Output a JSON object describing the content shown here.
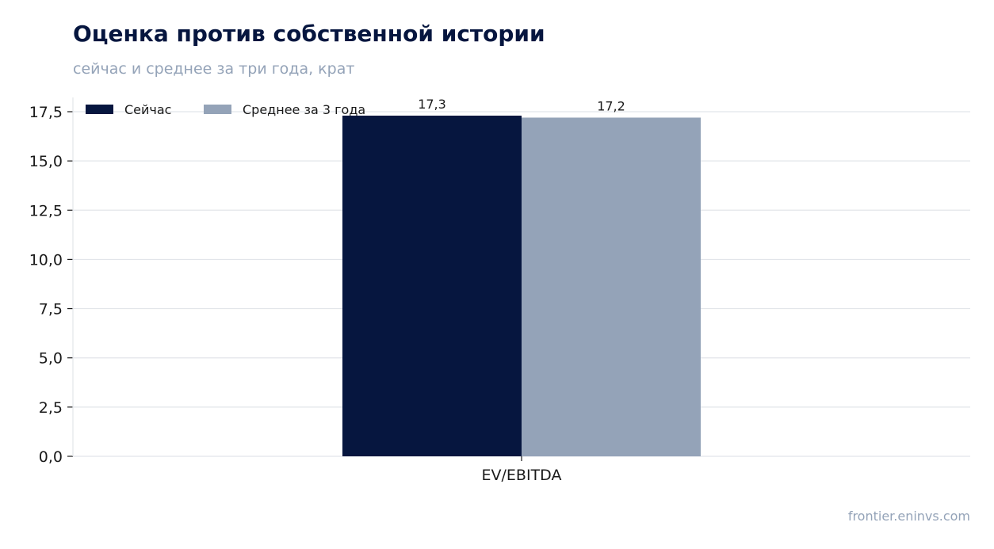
{
  "header": {
    "title": "Оценка против собственной истории",
    "subtitle": "сейчас и среднее за три года, крат"
  },
  "footer": {
    "source": "frontier.eninvs.com"
  },
  "colors": {
    "now": "#06163f",
    "avg": "#94a3b8",
    "grid": "#e2e5ea",
    "axis": "#1a1a1a"
  },
  "chart_data": {
    "type": "bar",
    "title": "Оценка против собственной истории",
    "subtitle": "сейчас и среднее за три года, крат",
    "categories": [
      "EV/EBITDA"
    ],
    "series": [
      {
        "name": "Сейчас",
        "values": [
          17.3
        ],
        "value_labels": [
          "17,3"
        ],
        "color": "#06163f"
      },
      {
        "name": "Среднее за 3 года",
        "values": [
          17.2
        ],
        "value_labels": [
          "17,2"
        ],
        "color": "#94a3b8"
      }
    ],
    "y_ticks": [
      0,
      2.5,
      5,
      7.5,
      10,
      12.5,
      15,
      17.5
    ],
    "y_tick_labels": [
      "0,0",
      "2,5",
      "5,0",
      "7,5",
      "10,0",
      "12,5",
      "15,0",
      "17,5"
    ],
    "ylim": [
      0,
      17.5
    ],
    "grid": true,
    "legend_position": "top-left"
  }
}
